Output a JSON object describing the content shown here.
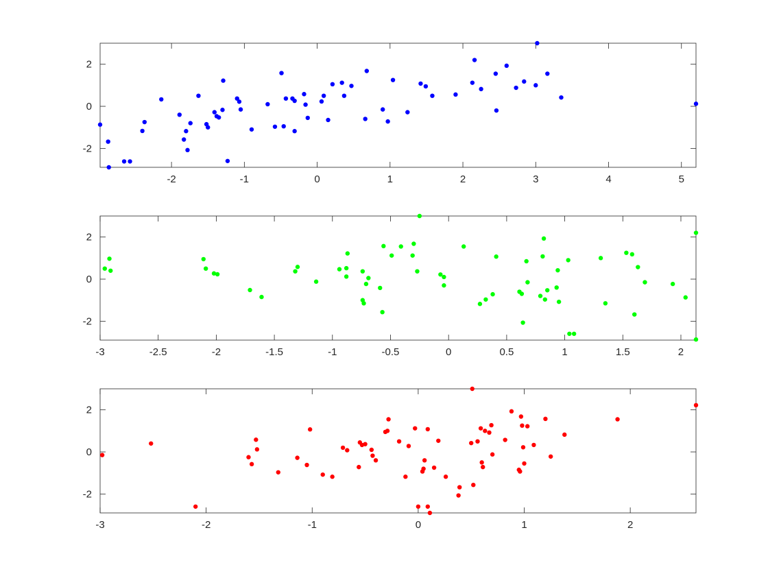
{
  "chart_data": [
    {
      "type": "scatter",
      "title": "",
      "xlabel": "",
      "ylabel": "",
      "xlim": [
        -2.98,
        5.2
      ],
      "ylim": [
        -2.9,
        3.0
      ],
      "xticks": [
        -2,
        -1,
        0,
        1,
        2,
        3,
        4,
        5
      ],
      "xtick_labels": [
        "-2",
        "-1",
        "0",
        "1",
        "2",
        "3",
        "4",
        "5"
      ],
      "yticks": [
        -2,
        0,
        2
      ],
      "ytick_labels": [
        "-2",
        "0",
        "2"
      ],
      "grid": false,
      "series": [
        {
          "color": "#0000ff",
          "points": [
            [
              -2.98,
              -0.87
            ],
            [
              -2.87,
              -1.68
            ],
            [
              -2.86,
              -2.9
            ],
            [
              -2.65,
              -2.62
            ],
            [
              -2.57,
              -2.62
            ],
            [
              -2.4,
              -1.17
            ],
            [
              -2.37,
              -0.75
            ],
            [
              -2.14,
              0.33
            ],
            [
              -1.89,
              -0.4
            ],
            [
              -1.83,
              -1.58
            ],
            [
              -1.8,
              -1.18
            ],
            [
              -1.78,
              -2.08
            ],
            [
              -1.74,
              -0.8
            ],
            [
              -1.63,
              0.5
            ],
            [
              -1.52,
              -0.85
            ],
            [
              -1.5,
              -1.0
            ],
            [
              -1.41,
              -0.28
            ],
            [
              -1.38,
              -0.47
            ],
            [
              -1.35,
              -0.53
            ],
            [
              -1.3,
              -0.17
            ],
            [
              -1.29,
              1.22
            ],
            [
              -1.23,
              -2.6
            ],
            [
              -1.1,
              0.37
            ],
            [
              -1.07,
              0.22
            ],
            [
              -1.05,
              -0.15
            ],
            [
              -0.9,
              -1.1
            ],
            [
              -0.68,
              0.1
            ],
            [
              -0.58,
              -0.97
            ],
            [
              -0.49,
              1.58
            ],
            [
              -0.46,
              -0.95
            ],
            [
              -0.43,
              0.37
            ],
            [
              -0.34,
              0.37
            ],
            [
              -0.31,
              0.26
            ],
            [
              -0.31,
              -1.18
            ],
            [
              -0.18,
              0.58
            ],
            [
              -0.16,
              0.08
            ],
            [
              -0.13,
              -0.55
            ],
            [
              0.06,
              0.23
            ],
            [
              0.09,
              0.5
            ],
            [
              0.15,
              -0.65
            ],
            [
              0.21,
              1.05
            ],
            [
              0.34,
              1.12
            ],
            [
              0.37,
              0.5
            ],
            [
              0.47,
              0.97
            ],
            [
              0.66,
              -0.6
            ],
            [
              0.68,
              1.68
            ],
            [
              0.9,
              -0.15
            ],
            [
              0.97,
              -0.72
            ],
            [
              1.04,
              1.25
            ],
            [
              1.24,
              -0.28
            ],
            [
              1.42,
              1.08
            ],
            [
              1.49,
              0.95
            ],
            [
              1.58,
              0.5
            ],
            [
              1.9,
              0.56
            ],
            [
              2.13,
              1.12
            ],
            [
              2.16,
              2.2
            ],
            [
              2.25,
              0.82
            ],
            [
              2.45,
              1.55
            ],
            [
              2.46,
              -0.2
            ],
            [
              2.6,
              1.93
            ],
            [
              2.73,
              0.88
            ],
            [
              2.84,
              1.18
            ],
            [
              3.0,
              1.0
            ],
            [
              3.02,
              3.0
            ],
            [
              3.16,
              1.55
            ],
            [
              3.35,
              0.42
            ],
            [
              5.2,
              0.12
            ]
          ]
        }
      ]
    },
    {
      "type": "scatter",
      "title": "",
      "xlabel": "",
      "ylabel": "",
      "xlim": [
        -3.0,
        2.13
      ],
      "ylim": [
        -2.9,
        3.0
      ],
      "xticks": [
        -3,
        -2.5,
        -2,
        -1.5,
        -1,
        -0.5,
        0,
        0.5,
        1,
        1.5,
        2
      ],
      "xtick_labels": [
        "-3",
        "-2.5",
        "-2",
        "-1.5",
        "-1",
        "-0.5",
        "0",
        "0.5",
        "1",
        "1.5",
        "2"
      ],
      "yticks": [
        -2,
        0,
        2
      ],
      "ytick_labels": [
        "-2",
        "0",
        "2"
      ],
      "grid": false,
      "series": [
        {
          "color": "#00ff00",
          "points": [
            [
              -2.96,
              0.5
            ],
            [
              -2.92,
              0.97
            ],
            [
              -2.91,
              0.4
            ],
            [
              -2.11,
              0.95
            ],
            [
              -2.09,
              0.5
            ],
            [
              -2.02,
              0.27
            ],
            [
              -1.99,
              0.23
            ],
            [
              -1.71,
              -0.52
            ],
            [
              -1.61,
              -0.85
            ],
            [
              -1.32,
              0.37
            ],
            [
              -1.3,
              0.58
            ],
            [
              -1.14,
              -0.12
            ],
            [
              -0.94,
              0.47
            ],
            [
              -0.88,
              0.52
            ],
            [
              -0.88,
              0.12
            ],
            [
              -0.87,
              1.22
            ],
            [
              -0.74,
              0.37
            ],
            [
              -0.74,
              -1.0
            ],
            [
              -0.73,
              -1.15
            ],
            [
              -0.71,
              -0.23
            ],
            [
              -0.69,
              0.05
            ],
            [
              -0.59,
              -0.42
            ],
            [
              -0.57,
              -1.57
            ],
            [
              -0.56,
              1.57
            ],
            [
              -0.49,
              1.12
            ],
            [
              -0.41,
              1.55
            ],
            [
              -0.31,
              1.12
            ],
            [
              -0.3,
              1.68
            ],
            [
              -0.27,
              0.37
            ],
            [
              -0.25,
              3.0
            ],
            [
              -0.07,
              0.22
            ],
            [
              -0.04,
              0.1
            ],
            [
              -0.04,
              -0.3
            ],
            [
              0.13,
              1.55
            ],
            [
              0.27,
              -1.18
            ],
            [
              0.32,
              -0.97
            ],
            [
              0.38,
              -0.72
            ],
            [
              0.41,
              1.07
            ],
            [
              0.61,
              -0.6
            ],
            [
              0.63,
              -0.7
            ],
            [
              0.64,
              -2.07
            ],
            [
              0.67,
              0.85
            ],
            [
              0.68,
              -0.15
            ],
            [
              0.79,
              -0.8
            ],
            [
              0.81,
              1.08
            ],
            [
              0.82,
              1.93
            ],
            [
              0.83,
              -0.97
            ],
            [
              0.85,
              -0.53
            ],
            [
              0.93,
              -0.4
            ],
            [
              0.94,
              0.42
            ],
            [
              0.95,
              -1.08
            ],
            [
              1.03,
              0.9
            ],
            [
              1.04,
              -2.6
            ],
            [
              1.08,
              -2.6
            ],
            [
              1.31,
              1.0
            ],
            [
              1.35,
              -1.15
            ],
            [
              1.53,
              1.25
            ],
            [
              1.58,
              1.18
            ],
            [
              1.6,
              -1.68
            ],
            [
              1.63,
              0.57
            ],
            [
              1.69,
              -0.15
            ],
            [
              1.93,
              -0.23
            ],
            [
              2.04,
              -0.87
            ],
            [
              2.13,
              2.2
            ],
            [
              2.13,
              -2.87
            ]
          ]
        }
      ]
    },
    {
      "type": "scatter",
      "title": "",
      "xlabel": "",
      "ylabel": "",
      "xlim": [
        -3.0,
        2.62
      ],
      "ylim": [
        -2.9,
        3.0
      ],
      "xticks": [
        -3,
        -2,
        -1,
        0,
        1,
        2
      ],
      "xtick_labels": [
        "-3",
        "-2",
        "-1",
        "0",
        "1",
        "2"
      ],
      "yticks": [
        -2,
        0,
        2
      ],
      "ytick_labels": [
        "-2",
        "0",
        "2"
      ],
      "grid": false,
      "series": [
        {
          "color": "#ff0000",
          "points": [
            [
              -2.98,
              -0.15
            ],
            [
              -2.52,
              0.4
            ],
            [
              -2.1,
              -2.6
            ],
            [
              -1.6,
              -0.25
            ],
            [
              -1.57,
              -0.58
            ],
            [
              -1.53,
              0.58
            ],
            [
              -1.52,
              0.12
            ],
            [
              -1.32,
              -0.97
            ],
            [
              -1.14,
              -0.28
            ],
            [
              -1.05,
              -0.62
            ],
            [
              -1.02,
              1.07
            ],
            [
              -0.9,
              -1.08
            ],
            [
              -0.81,
              -1.18
            ],
            [
              -0.71,
              0.2
            ],
            [
              -0.67,
              0.08
            ],
            [
              -0.56,
              -0.72
            ],
            [
              -0.55,
              0.45
            ],
            [
              -0.53,
              0.33
            ],
            [
              -0.5,
              0.37
            ],
            [
              -0.44,
              0.1
            ],
            [
              -0.43,
              -0.18
            ],
            [
              -0.4,
              -0.4
            ],
            [
              -0.31,
              0.95
            ],
            [
              -0.29,
              1.0
            ],
            [
              -0.28,
              1.55
            ],
            [
              -0.18,
              0.5
            ],
            [
              -0.12,
              -1.18
            ],
            [
              -0.09,
              0.28
            ],
            [
              -0.03,
              1.12
            ],
            [
              0.0,
              -2.6
            ],
            [
              0.04,
              -0.93
            ],
            [
              0.05,
              -0.8
            ],
            [
              0.06,
              -0.4
            ],
            [
              0.09,
              -2.6
            ],
            [
              0.09,
              1.08
            ],
            [
              0.11,
              -2.9
            ],
            [
              0.15,
              -0.75
            ],
            [
              0.19,
              0.53
            ],
            [
              0.26,
              -1.18
            ],
            [
              0.38,
              -2.07
            ],
            [
              0.39,
              -1.68
            ],
            [
              0.5,
              0.42
            ],
            [
              0.51,
              3.0
            ],
            [
              0.52,
              -1.57
            ],
            [
              0.56,
              0.5
            ],
            [
              0.59,
              1.12
            ],
            [
              0.6,
              -0.5
            ],
            [
              0.61,
              -0.72
            ],
            [
              0.63,
              1.0
            ],
            [
              0.67,
              0.92
            ],
            [
              0.69,
              1.27
            ],
            [
              0.7,
              -0.12
            ],
            [
              0.82,
              0.57
            ],
            [
              0.88,
              1.93
            ],
            [
              0.95,
              -0.85
            ],
            [
              0.96,
              -0.93
            ],
            [
              0.97,
              1.68
            ],
            [
              0.98,
              1.25
            ],
            [
              0.99,
              0.22
            ],
            [
              1.0,
              -0.55
            ],
            [
              1.03,
              1.22
            ],
            [
              1.09,
              0.33
            ],
            [
              1.2,
              1.57
            ],
            [
              1.25,
              -0.22
            ],
            [
              1.38,
              0.82
            ],
            [
              1.88,
              1.55
            ],
            [
              2.62,
              2.22
            ]
          ]
        }
      ]
    }
  ]
}
